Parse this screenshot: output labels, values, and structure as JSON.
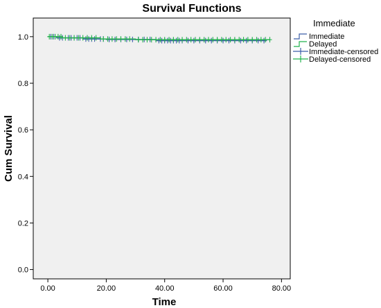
{
  "chart_data": {
    "type": "line",
    "title": "Survival Functions",
    "xlabel": "Time",
    "ylabel": "Cum Survival",
    "xlim": [
      -5,
      83
    ],
    "ylim": [
      -0.04,
      1.08
    ],
    "x_ticks": [
      0,
      20,
      40,
      60,
      80
    ],
    "x_tick_labels": [
      "0.00",
      "20.00",
      "40.00",
      "60.00",
      "80.00"
    ],
    "y_ticks": [
      0,
      0.2,
      0.4,
      0.6,
      0.8,
      1.0
    ],
    "y_tick_labels": [
      "0.0",
      "0.2",
      "0.4",
      "0.6",
      "0.8",
      "1.0"
    ],
    "grid": false,
    "legend": {
      "title": "Immediate",
      "position": "right",
      "entries": [
        {
          "label": "Immediate",
          "kind": "step",
          "color": "#3b5da8"
        },
        {
          "label": "Delayed",
          "kind": "step",
          "color": "#22b24c"
        },
        {
          "label": "Immediate-censored",
          "kind": "censor",
          "color": "#3b5da8"
        },
        {
          "label": "Delayed-censored",
          "kind": "censor",
          "color": "#22b24c"
        }
      ]
    },
    "series": [
      {
        "name": "Immediate",
        "color": "#3b5da8",
        "steps": [
          [
            0,
            1.0
          ],
          [
            3,
            0.995
          ],
          [
            12,
            0.99
          ],
          [
            20,
            0.988
          ],
          [
            37,
            0.983
          ],
          [
            75,
            0.983
          ]
        ],
        "censored": [
          1,
          2,
          4,
          5,
          7,
          8,
          9,
          10,
          11,
          13,
          14,
          15,
          16,
          18,
          19,
          21,
          23,
          25,
          27,
          29,
          31,
          33,
          35,
          38,
          39,
          40,
          41,
          42,
          43,
          44,
          45,
          46,
          48,
          50,
          52,
          54,
          56,
          58,
          60,
          62,
          64,
          66,
          68,
          70,
          72,
          74
        ]
      },
      {
        "name": "Delayed",
        "color": "#22b24c",
        "steps": [
          [
            0,
            1.0
          ],
          [
            5,
            0.995
          ],
          [
            18,
            0.99
          ],
          [
            30,
            0.987
          ],
          [
            76,
            0.987
          ]
        ],
        "censored": [
          0.5,
          1.5,
          2.5,
          3.5,
          4.5,
          6,
          7.5,
          9,
          10.5,
          12,
          13.5,
          15,
          16.5,
          19,
          20.5,
          22,
          23.5,
          25,
          26.5,
          28,
          31,
          32.5,
          34,
          35.5,
          37,
          38.5,
          40,
          41.5,
          43,
          44.5,
          46,
          47.5,
          49,
          50.5,
          52,
          53.5,
          55,
          56.5,
          58,
          59.5,
          61,
          62.5,
          64,
          65.5,
          67,
          68.5,
          70,
          71.5,
          73,
          74.5,
          76
        ]
      }
    ]
  }
}
